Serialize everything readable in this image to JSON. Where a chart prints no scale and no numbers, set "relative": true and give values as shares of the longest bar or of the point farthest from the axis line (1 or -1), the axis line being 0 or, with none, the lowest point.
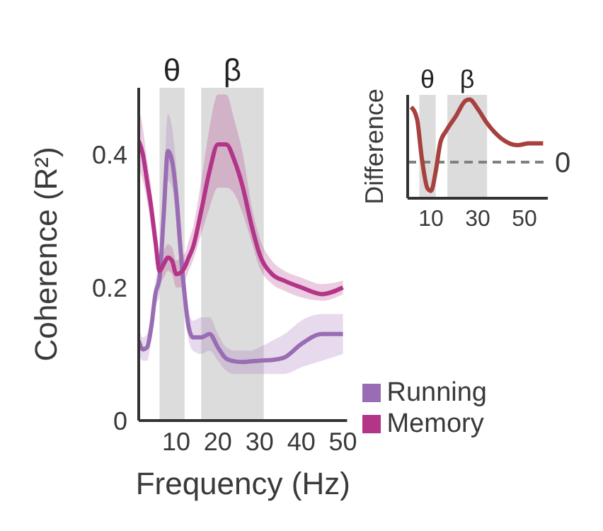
{
  "chart_data": [
    {
      "type": "line",
      "xlabel": "Frequency (Hz)",
      "ylabel": "Coherence (R²)",
      "xlim": [
        1,
        51
      ],
      "xticks": [
        10,
        20,
        30,
        40,
        50
      ],
      "ylim": [
        0,
        0.5
      ],
      "yticks": [
        0,
        0.2,
        0.4
      ],
      "legend": "bottom right",
      "x": [
        1,
        2,
        3,
        4,
        5,
        6,
        7,
        8,
        9,
        10,
        11,
        12,
        13,
        14,
        16,
        18,
        20,
        22,
        24,
        26,
        28,
        30,
        33,
        36,
        40,
        45,
        50
      ],
      "bands": [
        {
          "axis": "x",
          "from": 6,
          "to": 12,
          "label": "θ",
          "color": "#dcdcdc"
        },
        {
          "axis": "x",
          "from": 16,
          "to": 31,
          "label": "β",
          "color": "#dcdcdc"
        }
      ],
      "series": [
        {
          "name": "Running",
          "color": "#9a6cb4",
          "values": [
            0.12,
            0.107,
            0.11,
            0.14,
            0.19,
            0.215,
            0.31,
            0.405,
            0.39,
            0.34,
            0.26,
            0.19,
            0.14,
            0.125,
            0.125,
            0.13,
            0.11,
            0.093,
            0.089,
            0.088,
            0.089,
            0.09,
            0.091,
            0.095,
            0.115,
            0.13,
            0.13
          ],
          "lower": [
            0.1,
            0.09,
            0.09,
            0.12,
            0.17,
            0.19,
            0.27,
            0.36,
            0.35,
            0.3,
            0.22,
            0.16,
            0.12,
            0.105,
            0.1,
            0.105,
            0.09,
            0.075,
            0.07,
            0.07,
            0.07,
            0.07,
            0.07,
            0.07,
            0.08,
            0.09,
            0.1
          ],
          "upper": [
            0.14,
            0.125,
            0.13,
            0.16,
            0.21,
            0.24,
            0.35,
            0.46,
            0.44,
            0.38,
            0.3,
            0.22,
            0.165,
            0.15,
            0.155,
            0.155,
            0.13,
            0.11,
            0.105,
            0.105,
            0.105,
            0.11,
            0.12,
            0.13,
            0.15,
            0.16,
            0.16
          ]
        },
        {
          "name": "Memory",
          "color": "#b33588",
          "values": [
            0.42,
            0.4,
            0.36,
            0.32,
            0.27,
            0.225,
            0.235,
            0.245,
            0.24,
            0.22,
            0.222,
            0.23,
            0.245,
            0.26,
            0.315,
            0.375,
            0.415,
            0.415,
            0.39,
            0.35,
            0.295,
            0.25,
            0.22,
            0.21,
            0.2,
            0.19,
            0.2
          ],
          "lower": [
            0.38,
            0.36,
            0.33,
            0.29,
            0.25,
            0.205,
            0.215,
            0.225,
            0.22,
            0.2,
            0.2,
            0.21,
            0.225,
            0.24,
            0.28,
            0.32,
            0.35,
            0.35,
            0.34,
            0.31,
            0.27,
            0.23,
            0.205,
            0.195,
            0.185,
            0.18,
            0.19
          ],
          "upper": [
            0.47,
            0.44,
            0.39,
            0.35,
            0.29,
            0.245,
            0.255,
            0.265,
            0.26,
            0.24,
            0.245,
            0.25,
            0.27,
            0.29,
            0.36,
            0.44,
            0.49,
            0.49,
            0.45,
            0.4,
            0.325,
            0.275,
            0.24,
            0.225,
            0.215,
            0.205,
            0.21
          ]
        }
      ]
    },
    {
      "type": "line",
      "ylabel": "Difference",
      "relative": true,
      "xlim": [
        0,
        60
      ],
      "xticks": [
        10,
        30,
        50
      ],
      "tick_labels": "x",
      "x": [
        1.5,
        4,
        6,
        8.5,
        10,
        12,
        14,
        16.5,
        20.6,
        24.8,
        26.5,
        30,
        34,
        40,
        47,
        52,
        58
      ],
      "bands": [
        {
          "axis": "x",
          "from": 5,
          "to": 12,
          "label": "θ",
          "color": "#dcdcdc"
        },
        {
          "axis": "x",
          "from": 17,
          "to": 34,
          "label": "β",
          "color": "#dcdcdc"
        }
      ],
      "ref_lines": [
        {
          "axis": "y",
          "value": 0,
          "label": "0",
          "color": "#808080",
          "line_style": "dashed"
        }
      ],
      "series": [
        {
          "color": "#a8403e",
          "values": [
            0.88,
            0.69,
            0.08,
            -0.42,
            -0.46,
            -0.15,
            0.31,
            0.5,
            0.73,
            0.98,
            1,
            0.85,
            0.62,
            0.38,
            0.27,
            0.3,
            0.3
          ]
        }
      ]
    }
  ]
}
